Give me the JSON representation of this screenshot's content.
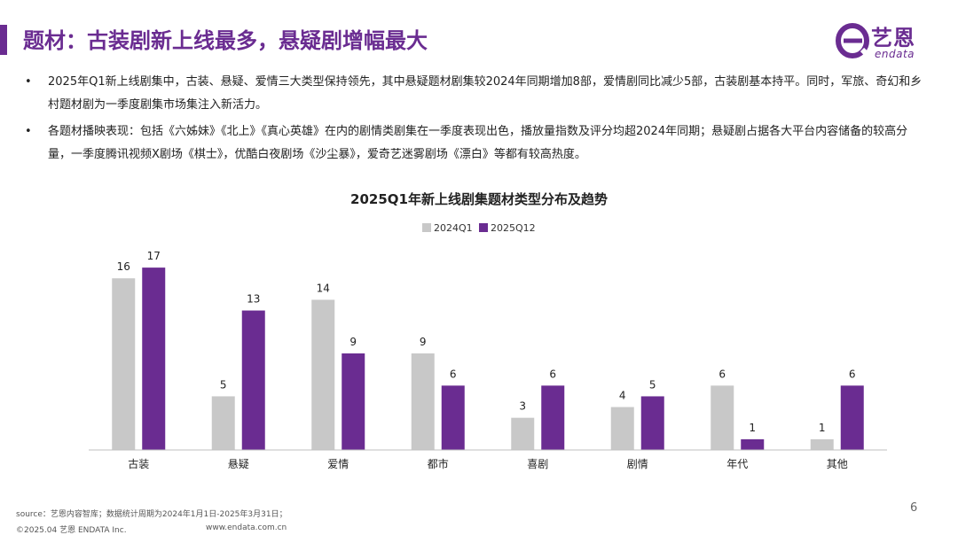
{
  "header": {
    "title": "题材：古装剧新上线最多，悬疑剧增幅最大"
  },
  "logo": {
    "name": "艺恩",
    "sub": "endata"
  },
  "bullets": [
    {
      "marker": "•",
      "text": "2025年Q1新上线剧集中，古装、悬疑、爱情三大类型保持领先，其中悬疑题材剧集较2024年同期增加8部，爱情剧同比减少5部，古装剧基本持平。同时，军旅、奇幻和乡村题材剧为一季度剧集市场集注入新活力。"
    },
    {
      "marker": "•",
      "text": "各题材播映表现：包括《六姊妹》《北上》《真心英雄》在内的剧情类剧集在一季度表现出色，播放量指数及评分均超2024年同期；悬疑剧占据各大平台内容储备的较高分量，一季度腾讯视频X剧场《棋士》，优酷白夜剧场《沙尘暴》，爱奇艺迷雾剧场《漂白》等都有较高热度。"
    }
  ],
  "chart_data": {
    "type": "bar",
    "title": "2025Q1年新上线剧集题材类型分布及趋势",
    "categories": [
      "古装",
      "悬疑",
      "爱情",
      "都市",
      "喜剧",
      "剧情",
      "年代",
      "其他"
    ],
    "series": [
      {
        "name": "2024Q1",
        "color": "#c8c8c8",
        "values": [
          16,
          5,
          14,
          9,
          3,
          4,
          6,
          1
        ]
      },
      {
        "name": "2025Q12",
        "color": "#6a2c91",
        "values": [
          17,
          13,
          9,
          6,
          6,
          5,
          1,
          6
        ]
      }
    ],
    "ylim": [
      0,
      18
    ],
    "xlabel": "",
    "ylabel": "",
    "grid": false,
    "legend_position": "top-center"
  },
  "footer": {
    "source": "source：艺恩内容智库；数据统计周期为2024年1月1日-2025年3月31日；",
    "copyright": "©2025.04 艺恩 ENDATA Inc.",
    "url": "www.endata.com.cn",
    "page_number": "6"
  }
}
